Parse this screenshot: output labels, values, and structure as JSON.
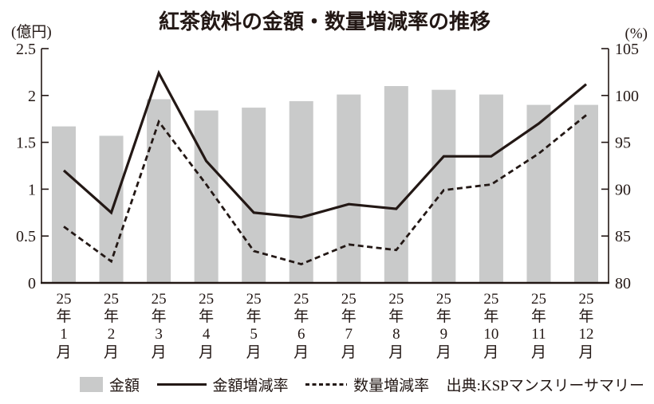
{
  "title": "紅茶飲料の金額・数量増減率の推移",
  "axes": {
    "left_unit": "(億円)",
    "right_unit": "(%)",
    "left_ticks": [
      "2.5",
      "2",
      "1.5",
      "1",
      "0.5",
      "0"
    ],
    "right_ticks": [
      "105",
      "100",
      "95",
      "90",
      "85",
      "80"
    ]
  },
  "legend": {
    "items": [
      {
        "label": "金額",
        "swatch": "bar"
      },
      {
        "label": "金額増減率",
        "swatch": "solid-line"
      },
      {
        "label": "数量増減率",
        "swatch": "dashed-line"
      }
    ],
    "source": "出典:KSPマンスリーサマリー"
  },
  "colors": {
    "background": "#ffffff",
    "bar": "#c9caca",
    "line": "#231815",
    "text": "#231815"
  },
  "chart_data": {
    "type": "combo",
    "title": "紅茶飲料の金額・数量増減率の推移",
    "categories": [
      "25年1月",
      "25年2月",
      "25年3月",
      "25年4月",
      "25年5月",
      "25年6月",
      "25年7月",
      "25年8月",
      "25年9月",
      "25年10月",
      "25年11月",
      "25年12月"
    ],
    "series": [
      {
        "name": "金額",
        "type": "bar",
        "axis": "left",
        "unit": "億円",
        "values": [
          1.67,
          1.57,
          1.96,
          1.84,
          1.87,
          1.94,
          2.01,
          2.1,
          2.06,
          2.01,
          1.9,
          1.9
        ]
      },
      {
        "name": "金額増減率",
        "type": "line",
        "line_style": "solid",
        "axis": "right",
        "unit": "%",
        "values": [
          92,
          87.5,
          102.4,
          93,
          87.5,
          87,
          88.4,
          87.9,
          93.5,
          93.5,
          97,
          101.2
        ]
      },
      {
        "name": "数量増減率",
        "type": "line",
        "line_style": "dashed",
        "axis": "right",
        "unit": "%",
        "values": [
          86,
          82.3,
          97.2,
          90.5,
          83.4,
          82,
          84.1,
          83.5,
          89.9,
          90.5,
          93.8,
          97.9
        ]
      }
    ],
    "left_ylim": [
      0,
      2.5
    ],
    "right_ylim": [
      80,
      105
    ],
    "grid": false,
    "legend_position": "bottom"
  }
}
